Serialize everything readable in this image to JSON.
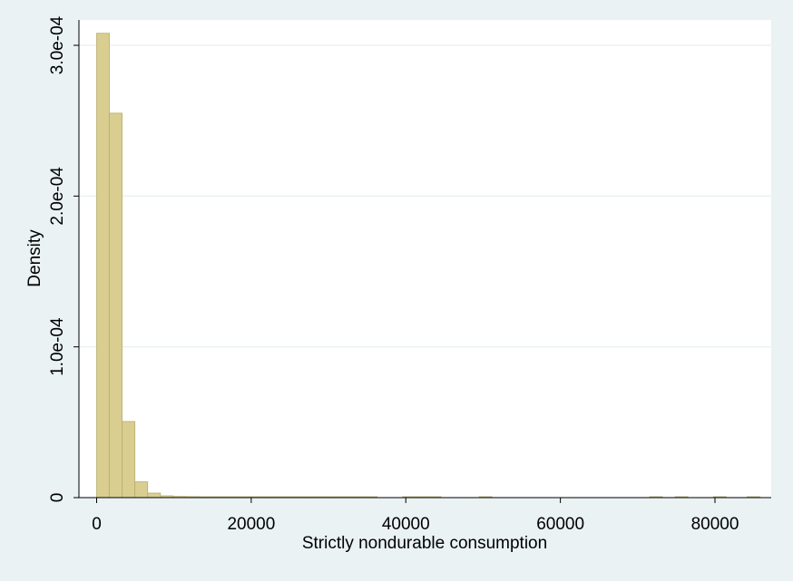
{
  "chart_data": {
    "type": "histogram",
    "xlabel": "Strictly nondurable consumption",
    "ylabel": "Density",
    "xlim": [
      0,
      87000
    ],
    "ylim": [
      0,
      0.000305
    ],
    "x_ticks": [
      {
        "value": 0,
        "label": "0"
      },
      {
        "value": 20000,
        "label": "20000"
      },
      {
        "value": 40000,
        "label": "40000"
      },
      {
        "value": 60000,
        "label": "60000"
      },
      {
        "value": 80000,
        "label": "80000"
      }
    ],
    "y_ticks": [
      {
        "value": 0,
        "label": "0"
      },
      {
        "value": 0.0001,
        "label": "1.0e-04"
      },
      {
        "value": 0.0002,
        "label": "2.0e-04"
      },
      {
        "value": 0.0003,
        "label": "3.0e-04"
      }
    ],
    "grid": true,
    "bin_width": 1650,
    "bins": [
      {
        "start": 0,
        "density": 0.000308
      },
      {
        "start": 1650,
        "density": 0.000255
      },
      {
        "start": 3300,
        "density": 5.05e-05
      },
      {
        "start": 4950,
        "density": 1.05e-05
      },
      {
        "start": 6600,
        "density": 3e-06
      },
      {
        "start": 8250,
        "density": 1.2e-06
      },
      {
        "start": 9900,
        "density": 8e-07
      },
      {
        "start": 11550,
        "density": 7e-07
      },
      {
        "start": 13200,
        "density": 6e-07
      },
      {
        "start": 14850,
        "density": 6e-07
      },
      {
        "start": 16500,
        "density": 5e-07
      },
      {
        "start": 18150,
        "density": 5e-07
      },
      {
        "start": 19800,
        "density": 5e-07
      },
      {
        "start": 21450,
        "density": 5e-07
      },
      {
        "start": 23100,
        "density": 5e-07
      },
      {
        "start": 24750,
        "density": 5e-07
      },
      {
        "start": 26400,
        "density": 5e-07
      },
      {
        "start": 28050,
        "density": 5e-07
      },
      {
        "start": 29700,
        "density": 5e-07
      },
      {
        "start": 31350,
        "density": 5e-07
      },
      {
        "start": 33000,
        "density": 5e-07
      },
      {
        "start": 34650,
        "density": 5e-07
      },
      {
        "start": 39600,
        "density": 5e-07
      },
      {
        "start": 41250,
        "density": 5e-07
      },
      {
        "start": 42900,
        "density": 5e-07
      },
      {
        "start": 49500,
        "density": 5e-07
      },
      {
        "start": 71550,
        "density": 5e-07
      },
      {
        "start": 74850,
        "density": 5e-07
      },
      {
        "start": 79800,
        "density": 5e-07
      },
      {
        "start": 84150,
        "density": 5e-07
      }
    ],
    "colors": {
      "bar_fill": "#d9cd90",
      "bar_stroke": "#b9ae70",
      "plot_bg": "#ffffff",
      "outer_bg": "#eaf2f3",
      "grid": "#e6eef0",
      "axis": "#000000"
    }
  }
}
